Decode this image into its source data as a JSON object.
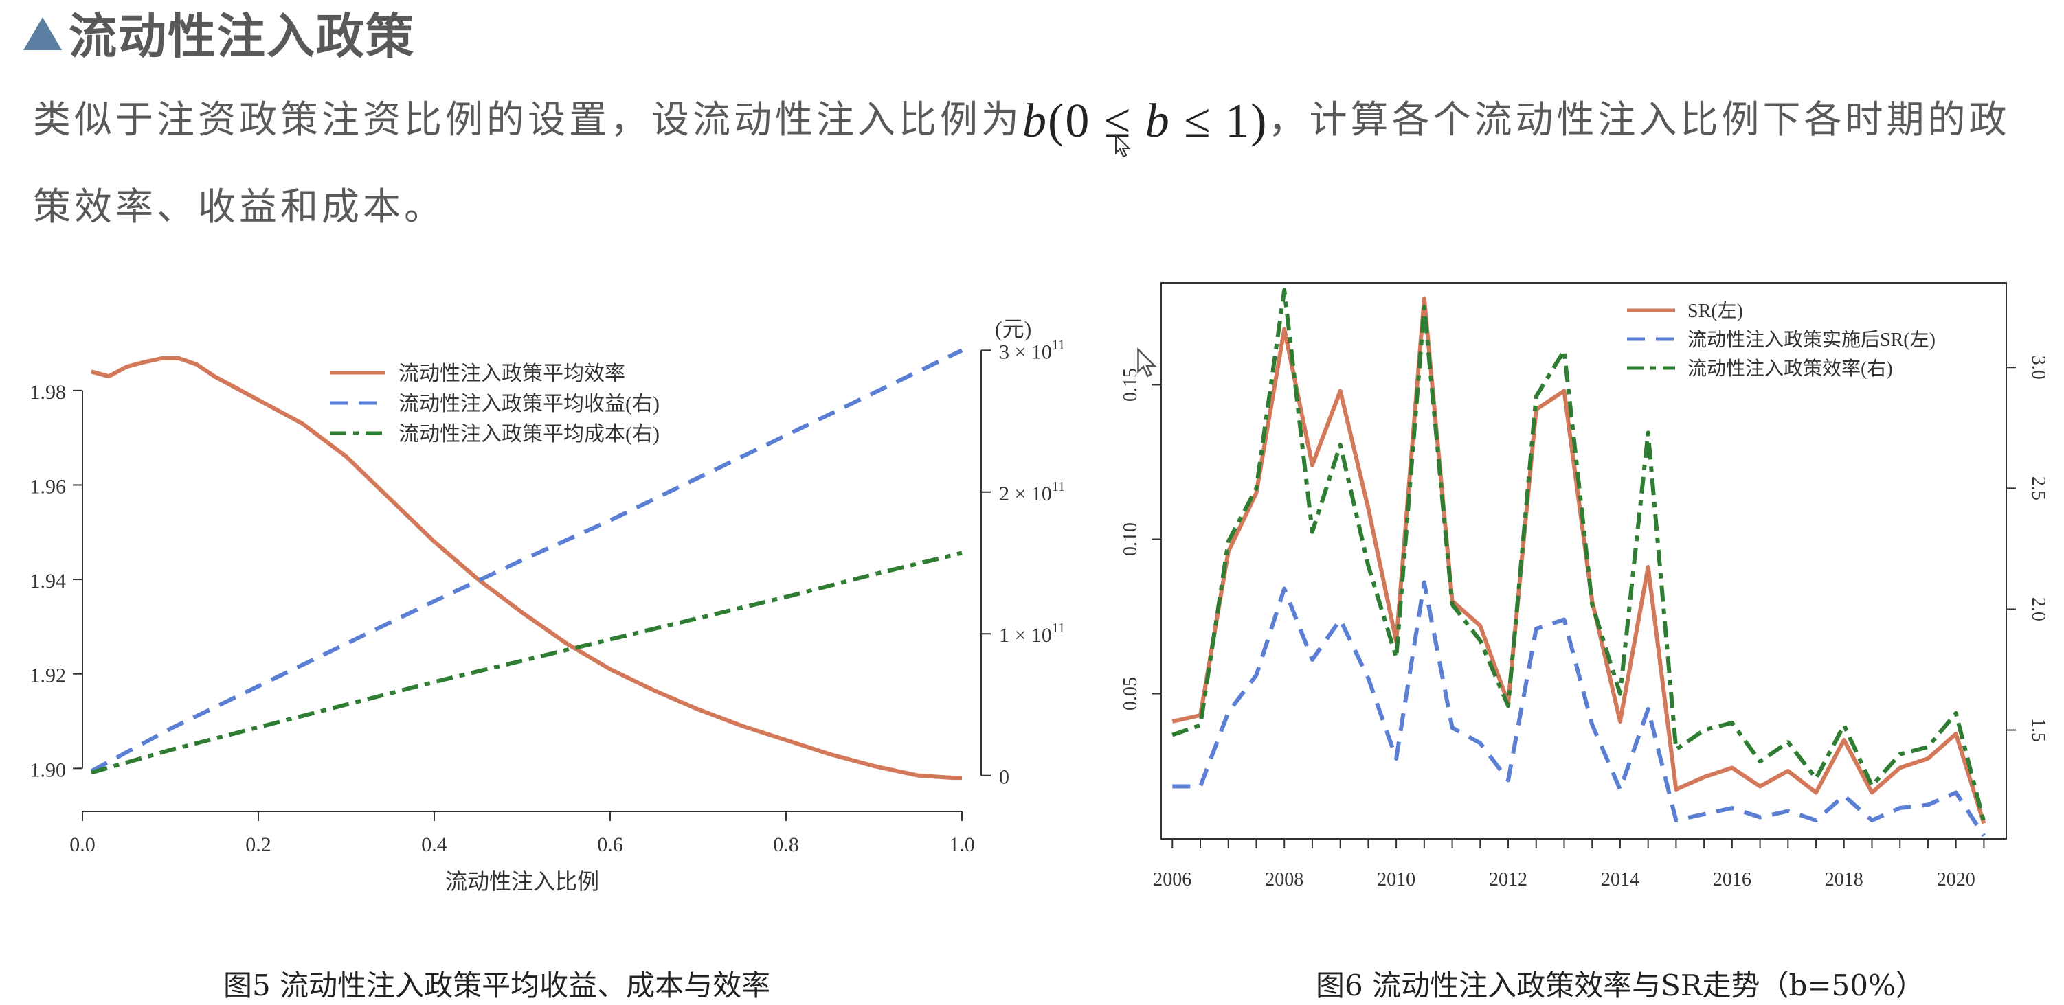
{
  "heading": {
    "icon": "triangle-bullet-icon",
    "title": "流动性注入政策"
  },
  "paragraph": {
    "part1": "类似于注资政策注资比例的设置，设流动性注入比例为",
    "formula": {
      "b1": "b",
      "rest1": "(0 ≤ ",
      "b2": "b",
      "rest2": " ≤ 1)"
    },
    "part2": "，计算各个流动性注入比例下各时期的政策效率、收益和成本。"
  },
  "colors": {
    "orange": "#d4785a",
    "blue": "#5b7fd4",
    "green": "#2e7d32",
    "text": "#595959",
    "bullet": "#5b7fa3"
  },
  "chart_data": [
    {
      "type": "line",
      "caption": "图5 流动性注入政策平均收益、成本与效率",
      "xlabel": "流动性注入比例",
      "ylabel": "",
      "right_unit": "(元)",
      "xlim": [
        0,
        1
      ],
      "ylim": [
        1.897,
        1.99
      ],
      "y2lim": [
        -5000000000.0,
        305000000000.0
      ],
      "x_ticks": [
        "0.0",
        "0.2",
        "0.4",
        "0.6",
        "0.8",
        "1.0"
      ],
      "y_ticks": [
        "1.90",
        "1.92",
        "1.94",
        "1.96",
        "1.98"
      ],
      "y2_ticks": [
        {
          "mant": "0",
          "exp": ""
        },
        {
          "mant": "1 × 10",
          "exp": "11"
        },
        {
          "mant": "2 × 10",
          "exp": "11"
        },
        {
          "mant": "3 × 10",
          "exp": "11"
        }
      ],
      "legend_position": "top-right",
      "series": [
        {
          "name": "流动性注入政策平均效率",
          "axis": "left",
          "style": "solid",
          "x": [
            0.01,
            0.03,
            0.05,
            0.07,
            0.09,
            0.11,
            0.13,
            0.15,
            0.18,
            0.2,
            0.25,
            0.3,
            0.35,
            0.4,
            0.45,
            0.5,
            0.55,
            0.6,
            0.65,
            0.7,
            0.75,
            0.8,
            0.85,
            0.9,
            0.95,
            0.99,
            1.0
          ],
          "values": [
            1.984,
            1.983,
            1.985,
            1.986,
            1.9868,
            1.9868,
            1.9855,
            1.983,
            1.98,
            1.978,
            1.973,
            1.966,
            1.957,
            1.948,
            1.94,
            1.933,
            1.9265,
            1.921,
            1.9165,
            1.9125,
            1.909,
            1.906,
            1.903,
            1.9005,
            1.8985,
            1.898,
            1.898
          ]
        },
        {
          "name": "流动性注入政策平均收益(右)",
          "axis": "right",
          "style": "dashed",
          "x": [
            0.01,
            0.1,
            0.2,
            0.3,
            0.4,
            0.5,
            0.6,
            0.7,
            0.8,
            0.9,
            1.0
          ],
          "values": [
            3000000000.0,
            33000000000.0,
            63000000000.0,
            93000000000.0,
            123000000000.0,
            152000000000.0,
            180000000000.0,
            210000000000.0,
            240000000000.0,
            270000000000.0,
            300000000000.0
          ]
        },
        {
          "name": "流动性注入政策平均成本(右)",
          "axis": "right",
          "style": "dashdot",
          "x": [
            0.01,
            0.1,
            0.2,
            0.3,
            0.4,
            0.5,
            0.6,
            0.7,
            0.8,
            0.9,
            1.0
          ],
          "values": [
            2000000000.0,
            18000000000.0,
            34000000000.0,
            50000000000.0,
            66000000000.0,
            81000000000.0,
            96000000000.0,
            111000000000.0,
            126000000000.0,
            142000000000.0,
            157000000000.0
          ]
        }
      ]
    },
    {
      "type": "line",
      "caption": "图6 流动性注入政策效率与SR走势（b=50%）",
      "xlabel": "",
      "ylabel": "",
      "xlim": [
        2005.8,
        2020.9
      ],
      "ylim": [
        0.003,
        0.183
      ],
      "y2lim": [
        1.05,
        3.35
      ],
      "x_ticks": [
        "2006",
        "2008",
        "2010",
        "2012",
        "2014",
        "2016",
        "2018",
        "2020"
      ],
      "y_ticks": [
        "0.05",
        "0.10",
        "0.15"
      ],
      "y2_ticks": [
        "1.5",
        "2.0",
        "2.5",
        "3.0"
      ],
      "legend_position": "top-right",
      "x": [
        2006,
        2006.5,
        2007,
        2007.5,
        2008,
        2008.5,
        2009,
        2009.5,
        2010,
        2010.5,
        2011,
        2011.5,
        2012,
        2012.5,
        2013,
        2013.5,
        2014,
        2014.5,
        2015,
        2015.5,
        2016,
        2016.5,
        2017,
        2017.5,
        2018,
        2018.5,
        2019,
        2019.5,
        2020,
        2020.5
      ],
      "series": [
        {
          "name": "SR(左)",
          "axis": "left",
          "style": "solid",
          "values": [
            0.041,
            0.043,
            0.096,
            0.115,
            0.168,
            0.124,
            0.148,
            0.11,
            0.067,
            0.178,
            0.08,
            0.072,
            0.047,
            0.142,
            0.148,
            0.08,
            0.041,
            0.091,
            0.019,
            0.023,
            0.026,
            0.02,
            0.025,
            0.018,
            0.035,
            0.018,
            0.026,
            0.029,
            0.037,
            0.008
          ]
        },
        {
          "name": "流动性注入政策实施后SR(左)",
          "axis": "left",
          "style": "dashed",
          "values": [
            0.02,
            0.02,
            0.044,
            0.056,
            0.084,
            0.061,
            0.074,
            0.055,
            0.029,
            0.086,
            0.039,
            0.034,
            0.022,
            0.071,
            0.074,
            0.04,
            0.019,
            0.045,
            0.009,
            0.011,
            0.013,
            0.01,
            0.012,
            0.009,
            0.017,
            0.009,
            0.013,
            0.014,
            0.018,
            0.004
          ]
        },
        {
          "name": "流动性注入政策效率(右)",
          "axis": "right",
          "style": "dashdot",
          "values": [
            1.48,
            1.52,
            2.28,
            2.5,
            3.32,
            2.32,
            2.68,
            2.18,
            1.8,
            3.25,
            2.02,
            1.87,
            1.6,
            2.88,
            3.07,
            2.02,
            1.65,
            2.73,
            1.42,
            1.5,
            1.53,
            1.37,
            1.45,
            1.3,
            1.52,
            1.27,
            1.4,
            1.43,
            1.57,
            1.12
          ]
        }
      ]
    }
  ]
}
